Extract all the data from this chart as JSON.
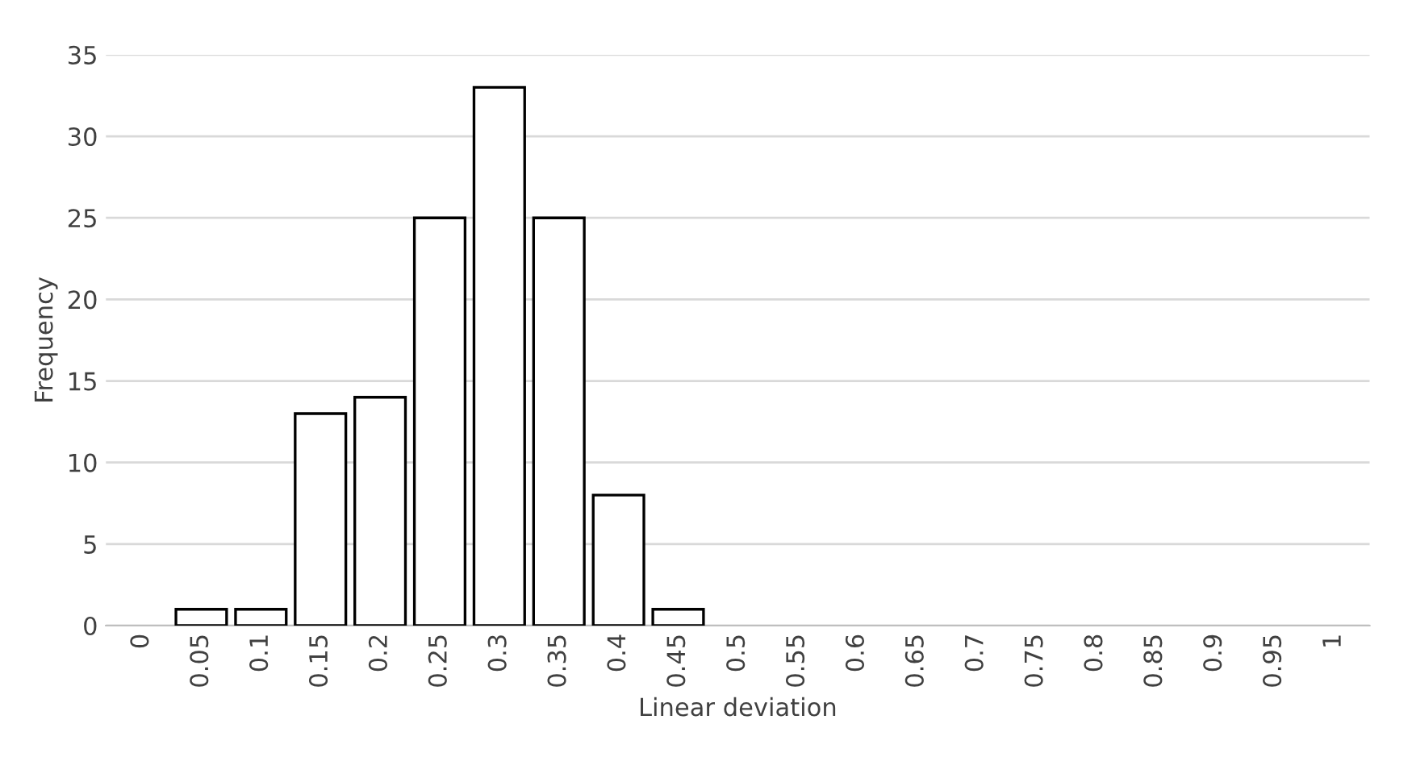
{
  "chart_data": {
    "type": "bar",
    "xlabel": "Linear deviation",
    "ylabel": "Frequency",
    "categories": [
      "0",
      "0.05",
      "0.1",
      "0.15",
      "0.2",
      "0.25",
      "0.3",
      "0.35",
      "0.4",
      "0.45",
      "0.5",
      "0.55",
      "0.6",
      "0.65",
      "0.7",
      "0.75",
      "0.8",
      "0.85",
      "0.9",
      "0.95",
      "1"
    ],
    "values": [
      0,
      1,
      1,
      13,
      14,
      25,
      33,
      25,
      8,
      1,
      0,
      0,
      0,
      0,
      0,
      0,
      0,
      0,
      0,
      0,
      0
    ],
    "color": "#ffffff",
    "ylim": [
      0,
      35
    ],
    "yticks": [
      0,
      5,
      10,
      15,
      20,
      25,
      30,
      35
    ],
    "grid": "y",
    "legend": false
  }
}
